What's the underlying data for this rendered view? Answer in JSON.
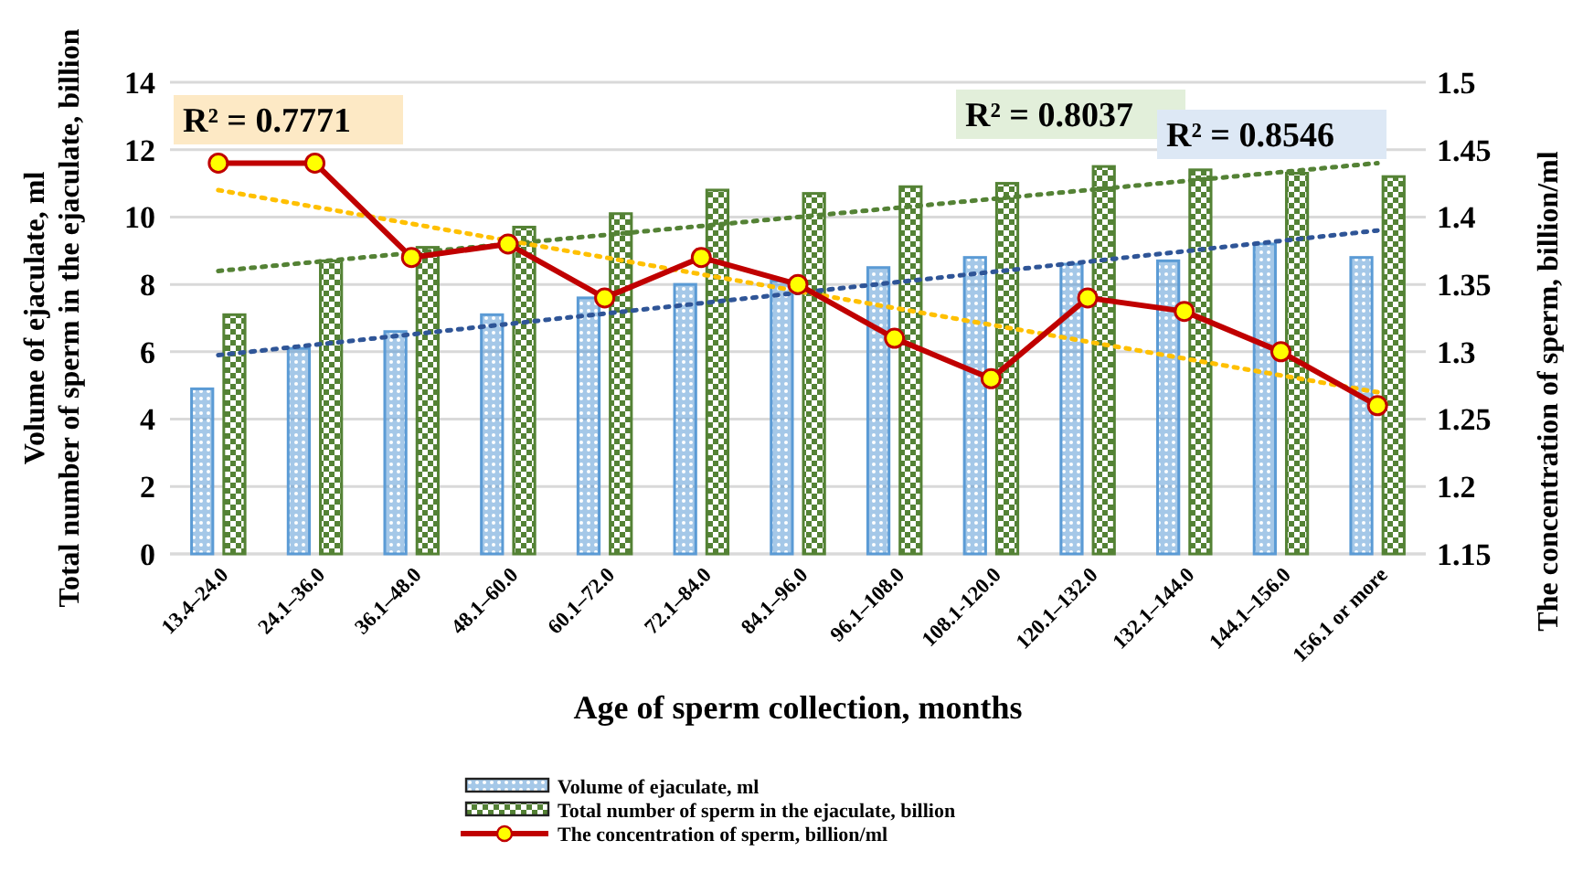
{
  "chart_data": {
    "type": "bar",
    "xlabel": "Age of sperm collection, months",
    "ylabel": "Volume of ejaculate, ml\nTotal number of sperm in the ejaculate, billion",
    "y2label": "The concentration of sperm, billion/ml",
    "categories": [
      "13.4–24.0",
      "24.1–36.0",
      "36.1–48.0",
      "48.1–60.0",
      "60.1–72.0",
      "72.1–84.0",
      "84.1–96.0",
      "96.1–108.0",
      "108.1-120.0",
      "120.1–132.0",
      "132.1–144.0",
      "144.1–156.0",
      "156.1 or more"
    ],
    "series": [
      {
        "name": "Volume of ejaculate, ml",
        "color": "#5b9bd5",
        "values": [
          4.9,
          6.1,
          6.6,
          7.1,
          7.6,
          8.0,
          8.1,
          8.5,
          8.8,
          8.6,
          8.7,
          9.2,
          8.8
        ]
      },
      {
        "name": "Total number of sperm in the ejaculate, billion",
        "color": "#548235",
        "values": [
          7.1,
          8.7,
          9.1,
          9.7,
          10.1,
          10.8,
          10.7,
          10.9,
          11.0,
          11.5,
          11.4,
          11.3,
          11.2
        ]
      },
      {
        "name": "The concentration of sperm, billion/ml",
        "type": "line",
        "axis": "y2",
        "color": "#c00000",
        "marker": "circle",
        "values": [
          1.44,
          1.44,
          1.37,
          1.38,
          1.34,
          1.37,
          1.35,
          1.31,
          1.28,
          1.34,
          1.33,
          1.3,
          1.26
        ]
      },
      {
        "type": "line",
        "color": "#2f5597",
        "line_style": "dotted",
        "marker": "none",
        "values": [
          5.9,
          null,
          null,
          null,
          null,
          null,
          null,
          null,
          null,
          null,
          null,
          null,
          9.6
        ]
      },
      {
        "type": "line",
        "color": "#548235",
        "line_style": "dotted",
        "marker": "none",
        "values": [
          8.4,
          null,
          null,
          null,
          null,
          null,
          null,
          null,
          null,
          null,
          null,
          null,
          11.6
        ]
      },
      {
        "type": "line",
        "axis": "y2",
        "color": "#ffc000",
        "line_style": "dotted",
        "marker": "none",
        "values": [
          1.42,
          null,
          null,
          null,
          null,
          null,
          null,
          null,
          null,
          null,
          null,
          null,
          1.27
        ]
      }
    ],
    "ylim": [
      0,
      14
    ],
    "yticks": [
      0,
      2,
      4,
      6,
      8,
      10,
      12,
      14
    ],
    "y2lim": [
      1.15,
      1.5
    ],
    "y2ticks": [
      1.15,
      1.2,
      1.25,
      1.3,
      1.35,
      1.4,
      1.45,
      1.5
    ],
    "grid": "y",
    "legend": "bottom",
    "annotations": [
      "R² = 0.7771",
      "R² = 0.8037",
      "R² = 0.8546"
    ]
  }
}
